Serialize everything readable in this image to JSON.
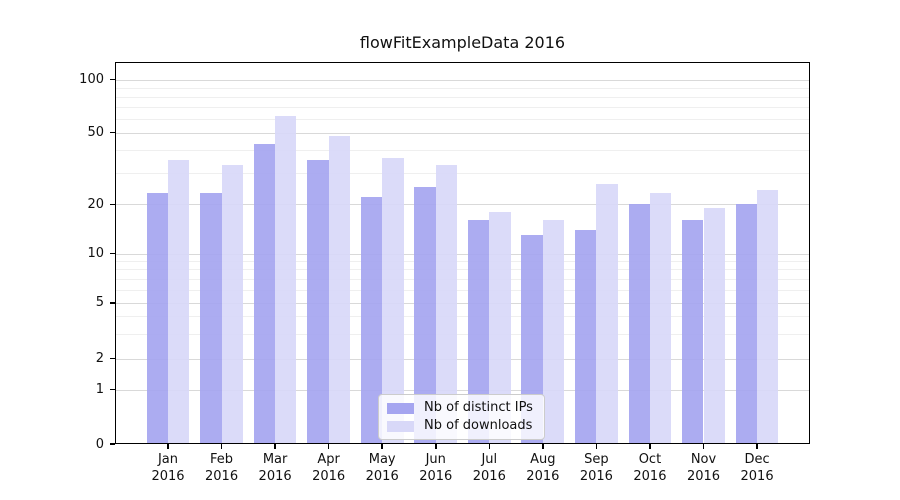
{
  "chart_data": {
    "type": "bar",
    "title": "flowFitExampleData 2016",
    "categories": [
      "Jan 2016",
      "Feb 2016",
      "Mar 2016",
      "Apr 2016",
      "May 2016",
      "Jun 2016",
      "Jul 2016",
      "Aug 2016",
      "Sep 2016",
      "Oct 2016",
      "Nov 2016",
      "Dec 2016"
    ],
    "month_labels": [
      "Jan",
      "Feb",
      "Mar",
      "Apr",
      "May",
      "Jun",
      "Jul",
      "Aug",
      "Sep",
      "Oct",
      "Nov",
      "Dec"
    ],
    "year_label": "2016",
    "series": [
      {
        "name": "Nb of distinct IPs",
        "color": "#a5a5f0",
        "values": [
          23,
          23,
          43,
          35,
          22,
          25,
          16,
          13,
          14,
          20,
          16,
          20
        ]
      },
      {
        "name": "Nb of downloads",
        "color": "#d8d8f8",
        "values": [
          35,
          33,
          62,
          48,
          36,
          33,
          18,
          16,
          26,
          23,
          19,
          24
        ]
      }
    ],
    "y_axis": {
      "tick_labels": [
        "0",
        "1",
        "2",
        "5",
        "10",
        "20",
        "50",
        "100"
      ],
      "tick_values": [
        0,
        1,
        2,
        5,
        10,
        20,
        50,
        100
      ],
      "scale": "log-like",
      "range": [
        0,
        100
      ]
    },
    "legend_position": "lower center",
    "grid": true,
    "background": "#ffffff"
  }
}
